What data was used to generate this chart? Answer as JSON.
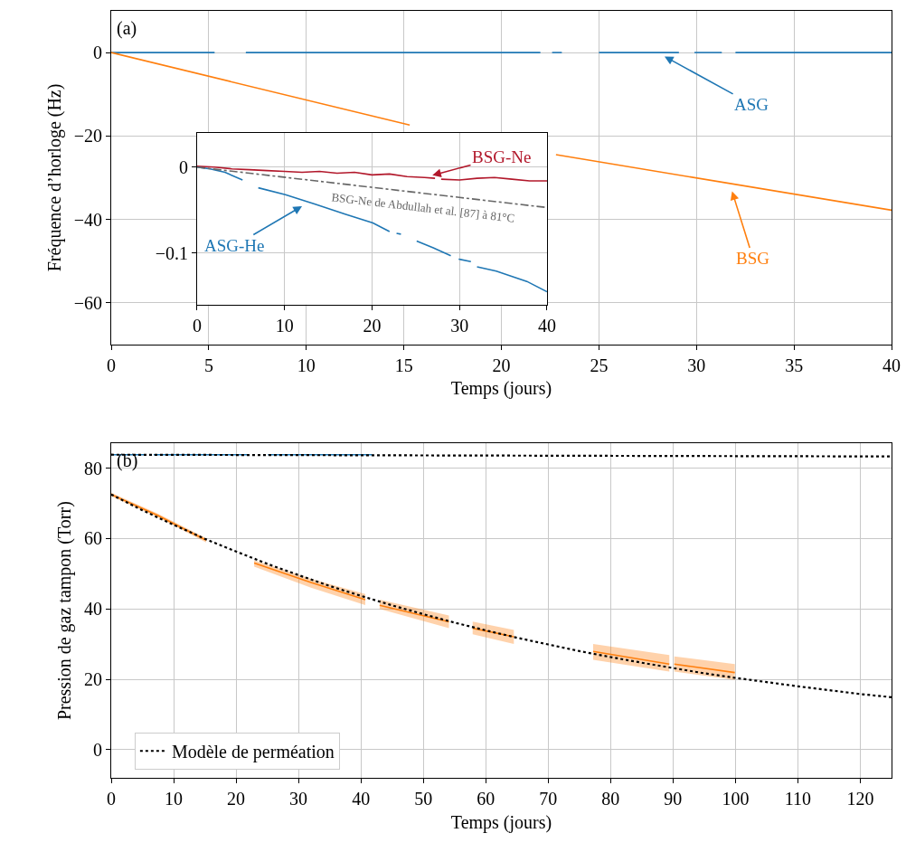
{
  "chart_data": [
    {
      "type": "line",
      "xlabel": "Temps (jours)",
      "ylabel": "Fréquence d’horloge (Hz)",
      "xlim": [
        0,
        40
      ],
      "xticks": [
        0,
        5,
        10,
        15,
        20,
        25,
        30,
        35,
        40
      ],
      "ylim": [
        -70,
        10
      ],
      "yticks": [
        0,
        {
          "value": -20,
          "label": "−20"
        },
        {
          "value": -40,
          "label": "−40"
        },
        {
          "value": -60,
          "label": "−60"
        }
      ],
      "grid": true,
      "annotations": [
        "(a)",
        {
          "text": "ASG",
          "x": 28,
          "y": 0
        },
        {
          "text": "BSG",
          "x": 31.7,
          "y": -31.4
        }
      ],
      "series": [
        {
          "color": "#1f77b4",
          "x": [
            0,
            5.3,
            5.4,
            6.9,
            22.0,
            22.1,
            22.6,
            23.1,
            23.2,
            25.0,
            29.1,
            29.2,
            29.9,
            31.3,
            31.4,
            32.0,
            40
          ],
          "values": [
            0,
            0,
            null,
            0,
            0,
            null,
            0,
            0,
            null,
            0,
            0,
            null,
            0,
            0,
            null,
            0,
            0
          ]
        },
        {
          "color": "#ff7f0e",
          "x": [
            0,
            15.3,
            15.4,
            22.8,
            40
          ],
          "values": [
            0,
            -17.4,
            null,
            -24.5,
            -37.8
          ]
        }
      ]
    },
    {
      "type": "line",
      "xlim": [
        0,
        40
      ],
      "xticks": [
        0,
        10,
        20,
        30,
        40
      ],
      "ylim": [
        -0.16,
        0.04
      ],
      "yticks": [
        0,
        {
          "value": -0.1,
          "label": "−0.1"
        }
      ],
      "grid": true,
      "annotations": [
        {
          "text": "BSG-Ne",
          "x": 26,
          "y": -0.012
        },
        {
          "text": "ASG-He",
          "x": 12.8,
          "y": -0.0407
        },
        {
          "text": "BSG-Ne de Abdullah et al. [87] à 81°C",
          "x": 26,
          "y": -0.0306
        }
      ],
      "series": [
        {
          "color": "#b2182b",
          "x": [
            0,
            2,
            4,
            6,
            8,
            10,
            12,
            14,
            16,
            18,
            20,
            22,
            24,
            26,
            27.2,
            27.5,
            27.9,
            30,
            32,
            34,
            36,
            38,
            40
          ],
          "values": [
            0.001,
            0,
            -0.002,
            -0.003,
            -0.004,
            -0.005,
            -0.006,
            -0.005,
            -0.007,
            -0.006,
            -0.009,
            -0.008,
            -0.011,
            -0.012,
            -0.013,
            null,
            -0.014,
            -0.015,
            -0.013,
            -0.012,
            -0.014,
            -0.016,
            -0.016
          ]
        },
        {
          "color": "#1f77b4",
          "x": [
            0,
            1.5,
            3.2,
            5.2,
            6,
            7.0,
            10.1,
            13.5,
            17,
            20.1,
            22,
            22.4,
            22.8,
            23.3,
            24,
            25.1,
            27,
            29,
            29.5,
            29.9,
            31.3,
            31.6,
            32,
            34.2,
            37.7,
            40
          ],
          "values": [
            0,
            -0.002,
            -0.006,
            -0.015,
            null,
            -0.024,
            -0.032,
            -0.043,
            -0.055,
            -0.065,
            -0.075,
            null,
            -0.077,
            -0.078,
            null,
            -0.086,
            -0.094,
            -0.103,
            null,
            -0.107,
            -0.11,
            null,
            -0.116,
            -0.121,
            -0.133,
            -0.145
          ]
        },
        {
          "color": "#666666",
          "line_style": "dashdot",
          "x": [
            0,
            40
          ],
          "values": [
            0,
            -0.047
          ]
        }
      ]
    },
    {
      "type": "line",
      "xlabel": "Temps (jours)",
      "ylabel": "Pression de gaz tampon (Torr)",
      "xlim": [
        0,
        125
      ],
      "xticks": [
        0,
        10,
        20,
        30,
        40,
        50,
        60,
        70,
        80,
        90,
        100,
        110,
        120
      ],
      "ylim": [
        -8,
        87
      ],
      "yticks": [
        0,
        20,
        40,
        60,
        80
      ],
      "grid": true,
      "legend": "bottom left",
      "annotations": [
        "(b)"
      ],
      "series": [
        {
          "color": "#1f77b4",
          "x": [
            0,
            5.6,
            6.2,
            6.8,
            21.9,
            23.5,
            25.1,
            41.8
          ],
          "values": [
            83.8,
            83.8,
            null,
            83.8,
            83.8,
            null,
            83.8,
            83.8
          ]
        },
        {
          "color": "#ff7f0e",
          "x": [
            0,
            7.5,
            15.2,
            19,
            22.9,
            32,
            40.7,
            42,
            43.0,
            54.1,
            56,
            57.9,
            64.5,
            70,
            77.2,
            89.4,
            89.8,
            90.2,
            99.9
          ],
          "values": [
            72.5,
            66.5,
            59.5,
            null,
            53.0,
            47.5,
            42.6,
            null,
            41.0,
            36.3,
            null,
            34.5,
            32.1,
            null,
            27.9,
            24.3,
            null,
            24.3,
            21.9
          ],
          "lower": [
            72.0,
            66.0,
            58.9,
            null,
            52.0,
            46.0,
            41.1,
            null,
            40.0,
            34.5,
            null,
            32.8,
            30.0,
            null,
            25.5,
            22.2,
            null,
            22.2,
            19.8
          ],
          "upper": [
            73.0,
            67.0,
            60.1,
            null,
            53.8,
            48.5,
            44.2,
            null,
            42.6,
            38.1,
            null,
            36.4,
            34.0,
            null,
            30.0,
            26.9,
            null,
            26.5,
            24.3
          ]
        },
        {
          "color": "#000000",
          "line_style": "dotted",
          "x": [
            0,
            125
          ],
          "values": [
            83.8,
            83.3
          ]
        },
        {
          "name": "Modèle de perméation",
          "color": "#000000",
          "line_style": "dotted",
          "x": [
            0,
            5,
            10,
            15,
            20,
            25,
            30,
            35,
            40,
            45,
            50,
            55,
            60,
            65,
            70,
            75,
            80,
            85,
            90,
            95,
            100,
            105,
            110,
            115,
            120,
            125
          ],
          "values": [
            72.5,
            68.0,
            63.9,
            59.9,
            56.3,
            52.8,
            49.6,
            46.5,
            43.7,
            41.0,
            38.5,
            36.1,
            33.9,
            31.8,
            29.9,
            28.0,
            26.3,
            24.7,
            23.2,
            21.7,
            20.4,
            19.2,
            18.0,
            16.9,
            15.8,
            14.9
          ]
        }
      ]
    }
  ]
}
